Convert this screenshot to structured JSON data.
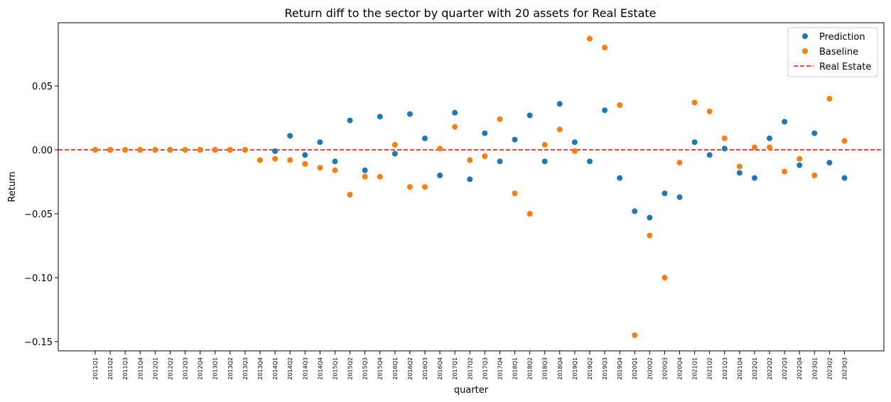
{
  "chart_data": {
    "type": "scatter",
    "title": "Return diff to the sector by quarter with 20 assets for Real Estate",
    "xlabel": "quarter",
    "ylabel": "Return",
    "ylim": [
      -0.157,
      0.1
    ],
    "yticks": [
      0.05,
      0.0,
      -0.05,
      -0.1,
      -0.15
    ],
    "ytick_labels": [
      "0.05",
      "0.00",
      "−0.05",
      "−0.10",
      "−0.15"
    ],
    "grid": false,
    "legend_position": "top-right",
    "categories": [
      "2011Q1",
      "2011Q2",
      "2011Q3",
      "2011Q4",
      "2012Q1",
      "2012Q2",
      "2012Q3",
      "2012Q4",
      "2013Q1",
      "2013Q2",
      "2013Q3",
      "2013Q4",
      "2014Q1",
      "2014Q2",
      "2014Q3",
      "2014Q4",
      "2015Q1",
      "2015Q2",
      "2015Q3",
      "2015Q4",
      "2016Q1",
      "2016Q2",
      "2016Q3",
      "2016Q4",
      "2017Q1",
      "2017Q2",
      "2017Q3",
      "2017Q4",
      "2018Q1",
      "2018Q2",
      "2018Q3",
      "2018Q4",
      "2019Q1",
      "2019Q2",
      "2019Q3",
      "2019Q4",
      "2020Q1",
      "2020Q2",
      "2020Q3",
      "2020Q4",
      "2021Q1",
      "2021Q2",
      "2021Q3",
      "2021Q4",
      "2022Q1",
      "2022Q2",
      "2022Q3",
      "2022Q4",
      "2023Q1",
      "2023Q2",
      "2023Q3"
    ],
    "series": [
      {
        "name": "Prediction",
        "color": "#1f77b4",
        "values": [
          0.0,
          0.0,
          0.0,
          0.0,
          0.0,
          0.0,
          0.0,
          0.0,
          0.0,
          0.0,
          0.0,
          -0.008,
          -0.001,
          0.011,
          -0.004,
          0.006,
          -0.009,
          0.023,
          -0.016,
          0.026,
          -0.003,
          0.028,
          0.009,
          -0.02,
          0.029,
          -0.023,
          0.013,
          -0.009,
          0.008,
          0.027,
          -0.009,
          0.036,
          0.006,
          -0.009,
          0.031,
          -0.022,
          -0.048,
          -0.053,
          -0.034,
          -0.037,
          0.006,
          -0.004,
          0.001,
          -0.018,
          -0.022,
          0.009,
          0.022,
          -0.012,
          0.013,
          -0.01,
          -0.022
        ]
      },
      {
        "name": "Baseline",
        "color": "#ff7f0e",
        "values": [
          0.0,
          0.0,
          0.0,
          0.0,
          0.0,
          0.0,
          0.0,
          0.0,
          0.0,
          0.0,
          0.0,
          -0.008,
          -0.007,
          -0.008,
          -0.011,
          -0.014,
          -0.016,
          -0.035,
          -0.021,
          -0.021,
          0.004,
          -0.029,
          -0.029,
          0.001,
          0.018,
          -0.008,
          -0.005,
          0.024,
          -0.034,
          -0.05,
          0.004,
          0.016,
          -0.001,
          0.087,
          0.08,
          0.035,
          -0.145,
          -0.067,
          -0.1,
          -0.01,
          0.037,
          0.03,
          0.009,
          -0.013,
          0.002,
          0.002,
          -0.017,
          -0.007,
          -0.02,
          0.04,
          0.007
        ]
      }
    ],
    "reference_line": {
      "name": "Real Estate",
      "y": 0.0,
      "color": "#ff0000",
      "style": "dashed"
    }
  }
}
